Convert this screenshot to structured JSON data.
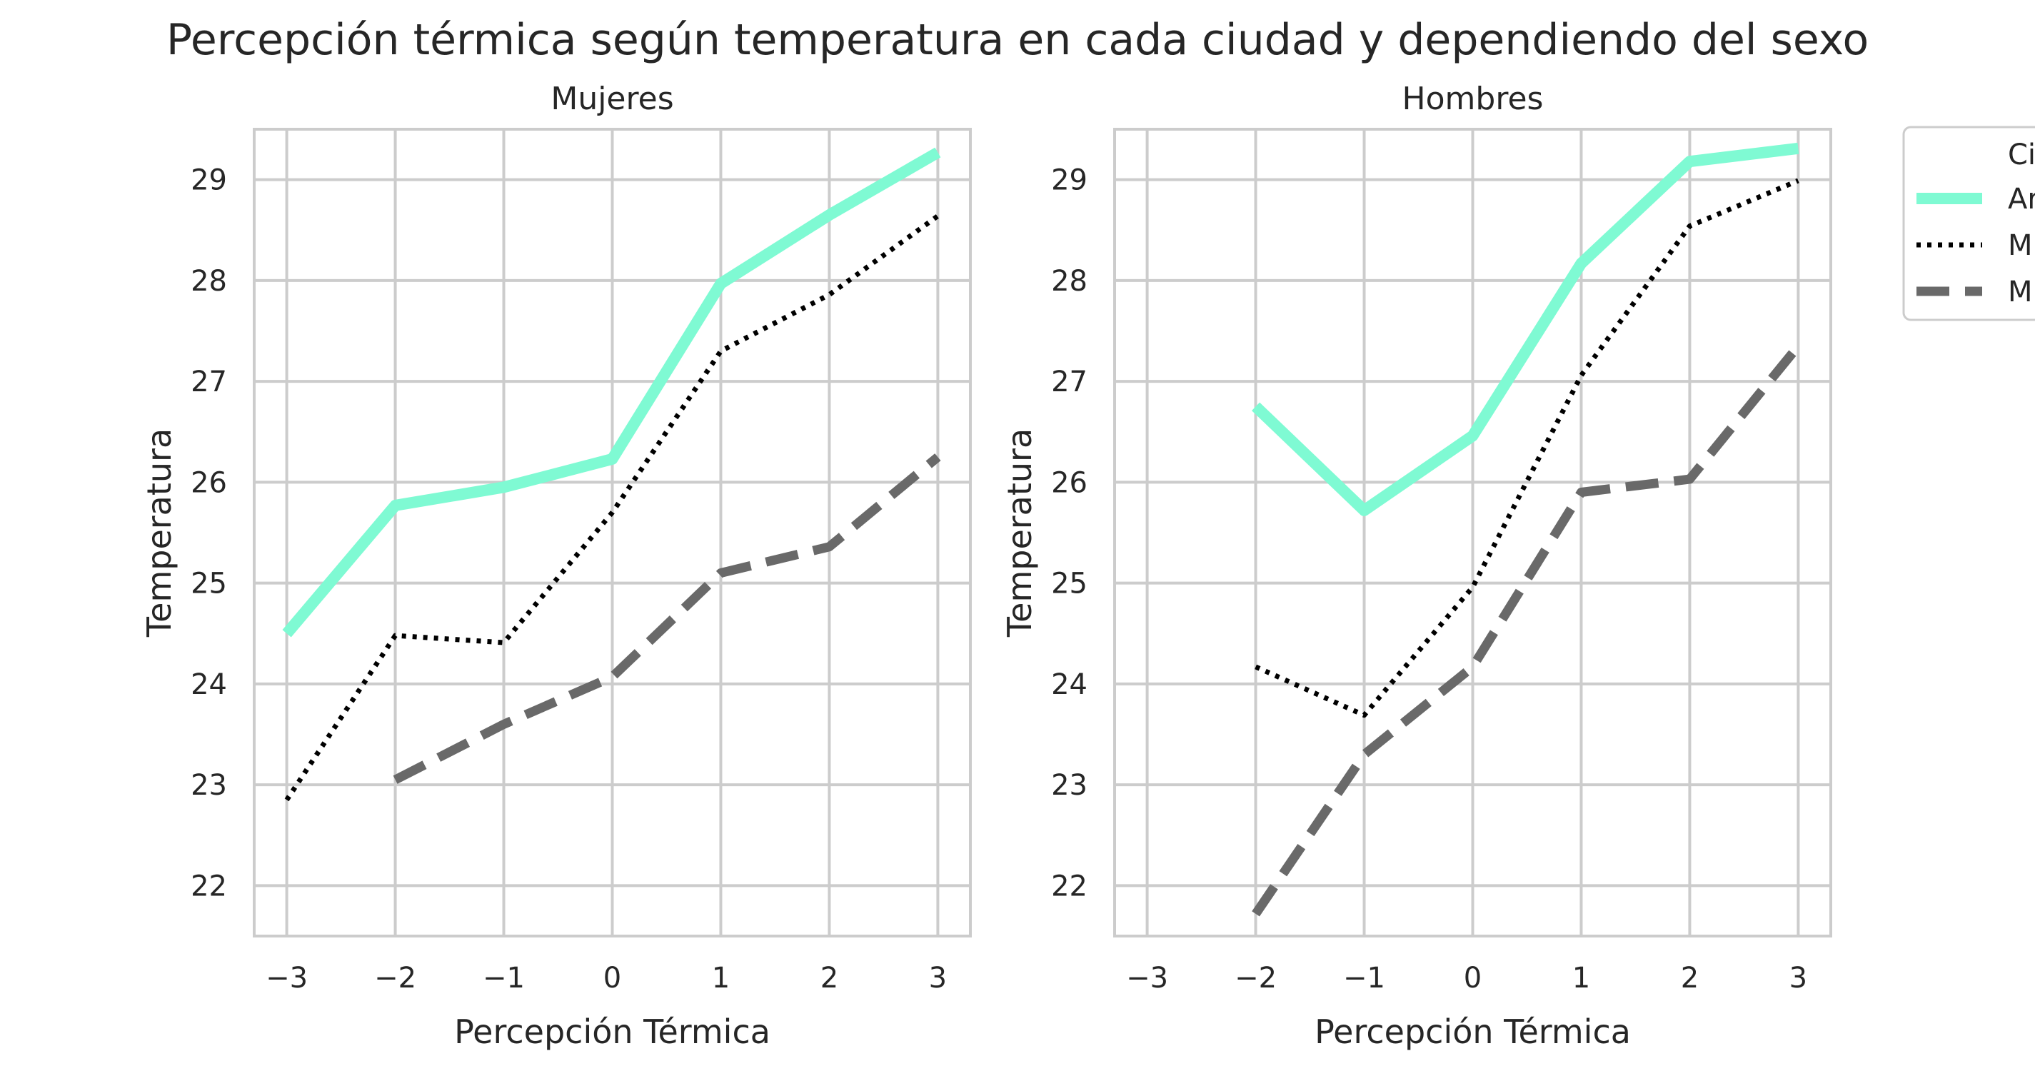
{
  "chart_data": {
    "type": "line",
    "title": "Percepción térmica según temperatura en cada ciudad y dependiendo del sexo",
    "legend": {
      "placement": "outside-right",
      "title": "Ci"
    },
    "series_style": [
      {
        "color": "#7ffad3",
        "dash": "solid"
      },
      {
        "color": "#000000",
        "dash": "dotted"
      },
      {
        "color": "#696969",
        "dash": "dashed"
      }
    ],
    "panels": [
      {
        "title": "Mujeres",
        "xlabel": "Percepción Térmica",
        "ylabel": "Temperatura",
        "xlim": [
          -3.3,
          3.3
        ],
        "ylim": [
          21.5,
          29.5
        ],
        "xticks": [
          -3,
          -2,
          -1,
          0,
          1,
          2,
          3
        ],
        "xtick_labels": [
          "−3",
          "−2",
          "−1",
          "0",
          "1",
          "2",
          "3"
        ],
        "yticks": [
          22,
          23,
          24,
          25,
          26,
          27,
          28,
          29
        ],
        "ytick_labels": [
          "22",
          "23",
          "24",
          "25",
          "26",
          "27",
          "28",
          "29"
        ],
        "grid": true,
        "series": [
          {
            "legend_label": "Ar",
            "x": [
              -3,
              -2,
              -1,
              0,
              1,
              2,
              3
            ],
            "values": [
              24.5,
              25.77,
              25.95,
              26.23,
              27.97,
              28.65,
              29.27
            ]
          },
          {
            "legend_label": "M",
            "x": [
              -3,
              -2,
              -1,
              0,
              1,
              2,
              3
            ],
            "values": [
              22.85,
              24.48,
              24.41,
              25.7,
              27.3,
              27.86,
              28.64
            ]
          },
          {
            "legend_label": "M",
            "x": [
              -2,
              -1,
              0,
              1,
              2,
              3
            ],
            "values": [
              23.05,
              23.6,
              24.07,
              25.1,
              25.36,
              26.25
            ]
          }
        ]
      },
      {
        "title": "Hombres",
        "xlabel": "Percepción Térmica",
        "ylabel": "Temperatura",
        "xlim": [
          -3.3,
          3.3
        ],
        "ylim": [
          21.5,
          29.5
        ],
        "xticks": [
          -3,
          -2,
          -1,
          0,
          1,
          2,
          3
        ],
        "xtick_labels": [
          "−3",
          "−2",
          "−1",
          "0",
          "1",
          "2",
          "3"
        ],
        "yticks": [
          22,
          23,
          24,
          25,
          26,
          27,
          28,
          29
        ],
        "ytick_labels": [
          "22",
          "23",
          "24",
          "25",
          "26",
          "27",
          "28",
          "29"
        ],
        "grid": true,
        "series": [
          {
            "legend_label": "Ar",
            "x": [
              -2,
              -1,
              0,
              1,
              2,
              3
            ],
            "values": [
              26.75,
              25.72,
              26.46,
              28.17,
              29.18,
              29.31
            ]
          },
          {
            "legend_label": "M",
            "x": [
              -2,
              -1,
              0,
              1,
              2,
              3
            ],
            "values": [
              24.17,
              23.69,
              24.96,
              27.06,
              28.54,
              28.99
            ]
          },
          {
            "legend_label": "M",
            "x": [
              -2,
              -1,
              0,
              1,
              2,
              3
            ],
            "values": [
              21.72,
              23.3,
              24.17,
              25.9,
              26.03,
              27.35
            ]
          }
        ]
      }
    ]
  }
}
